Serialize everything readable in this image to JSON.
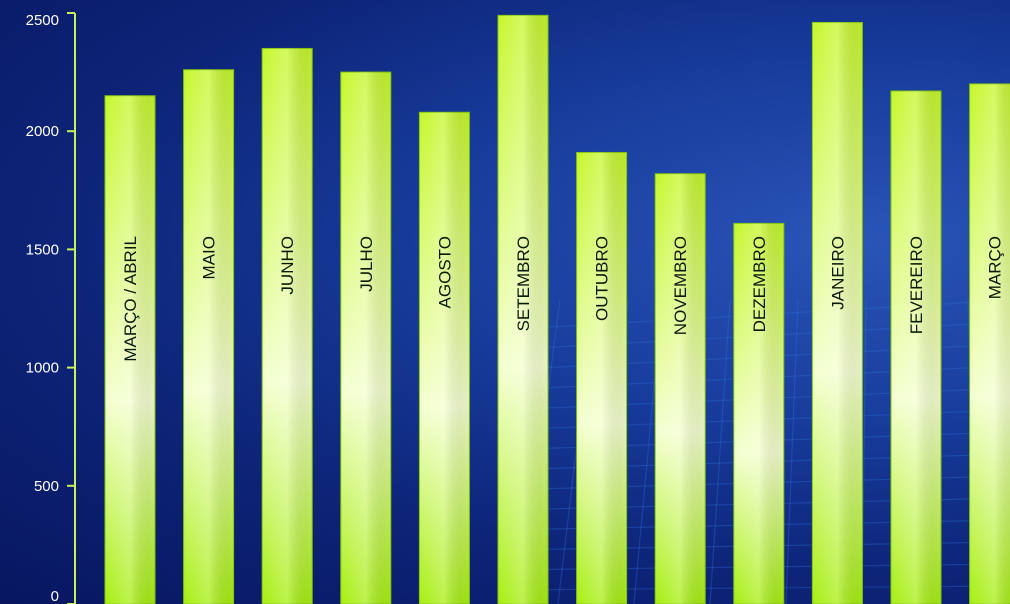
{
  "colors": {
    "bar_top": "#c5f72c",
    "bar_mid": "#f4ffd0",
    "bar_bottom": "#a7ee10",
    "axis": "#c8f05a",
    "grid": "#2f6fd8"
  },
  "chart_data": {
    "type": "bar",
    "title": "",
    "xlabel": "",
    "ylabel": "",
    "ylim": [
      0,
      2500
    ],
    "yticks": [
      "0",
      "500",
      "1000",
      "1500",
      "2000",
      "2500"
    ],
    "grid": false,
    "categories": [
      "MARÇO / ABRIL",
      "MAIO",
      "JUNHO",
      "JULHO",
      "AGOSTO",
      "SETEMBRO",
      "OUTUBRO",
      "NOVEMBRO",
      "DEZEMBRO",
      "JANEIRO",
      "FEVEREIRO",
      "MARÇO"
    ],
    "values": [
      2150,
      2260,
      2350,
      2250,
      2080,
      2490,
      1910,
      1820,
      1610,
      2460,
      2170,
      2200
    ]
  }
}
